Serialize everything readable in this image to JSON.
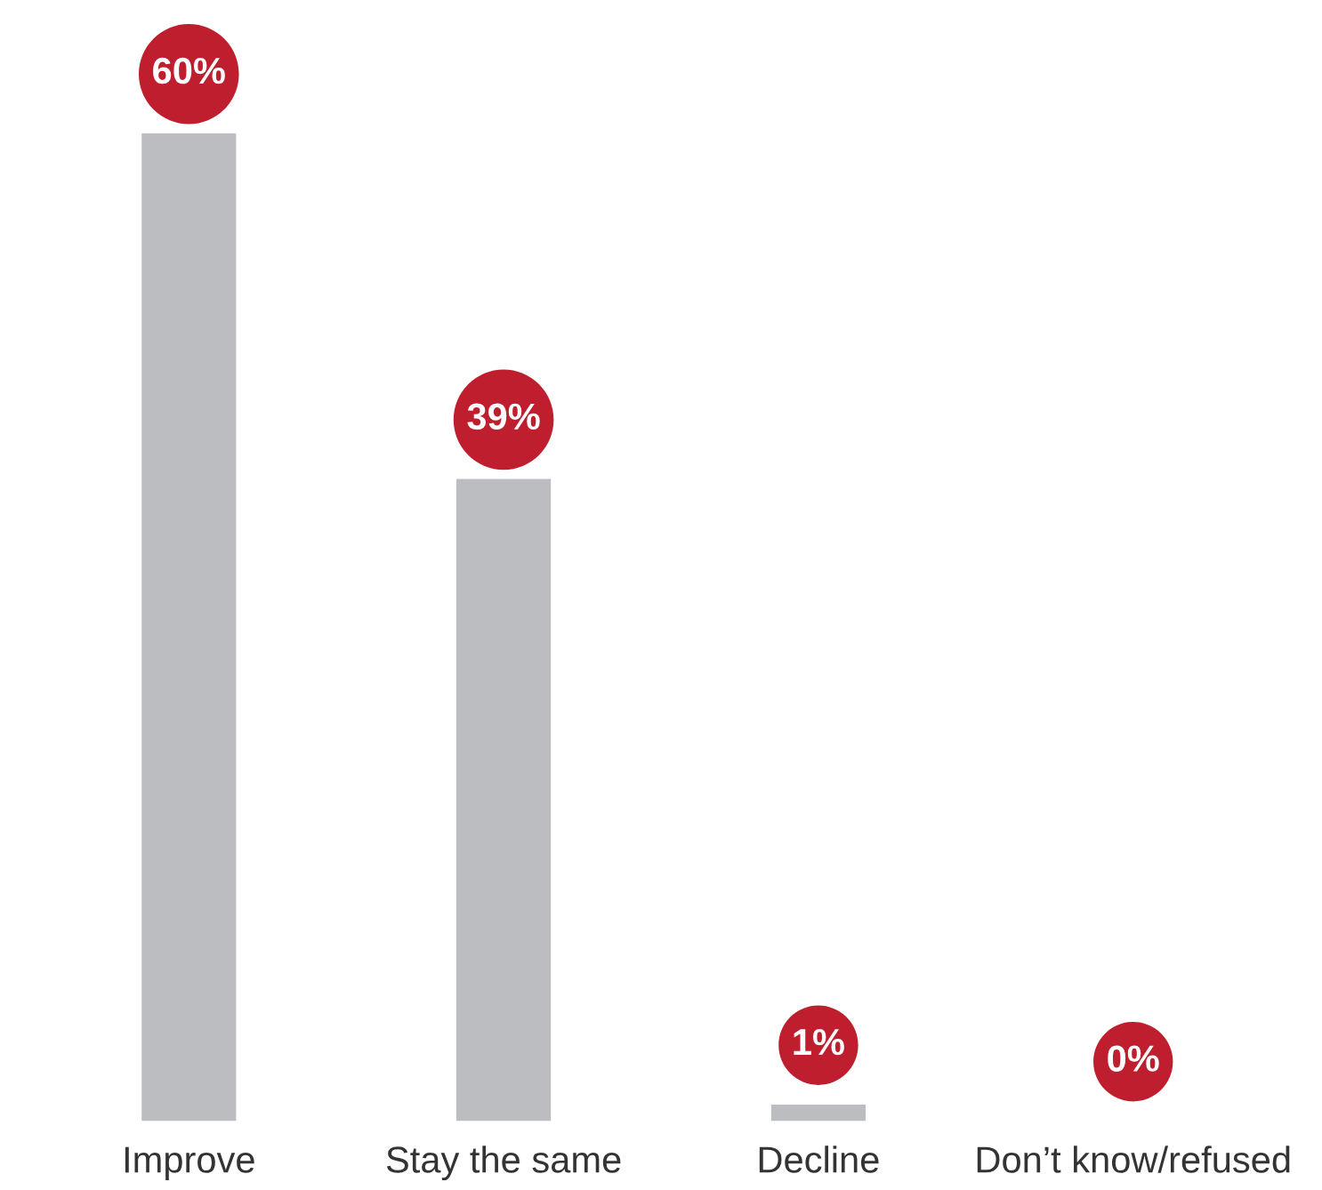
{
  "chart_data": {
    "type": "bar",
    "categories": [
      "Improve",
      "Stay the same",
      "Decline",
      "Don’t know/refused"
    ],
    "values": [
      60,
      39,
      1,
      0
    ],
    "value_labels": [
      "60%",
      "39%",
      "1%",
      "0%"
    ],
    "color": "#bcbdc0",
    "tick_labels": "x",
    "grid": false,
    "legend": false
  }
}
